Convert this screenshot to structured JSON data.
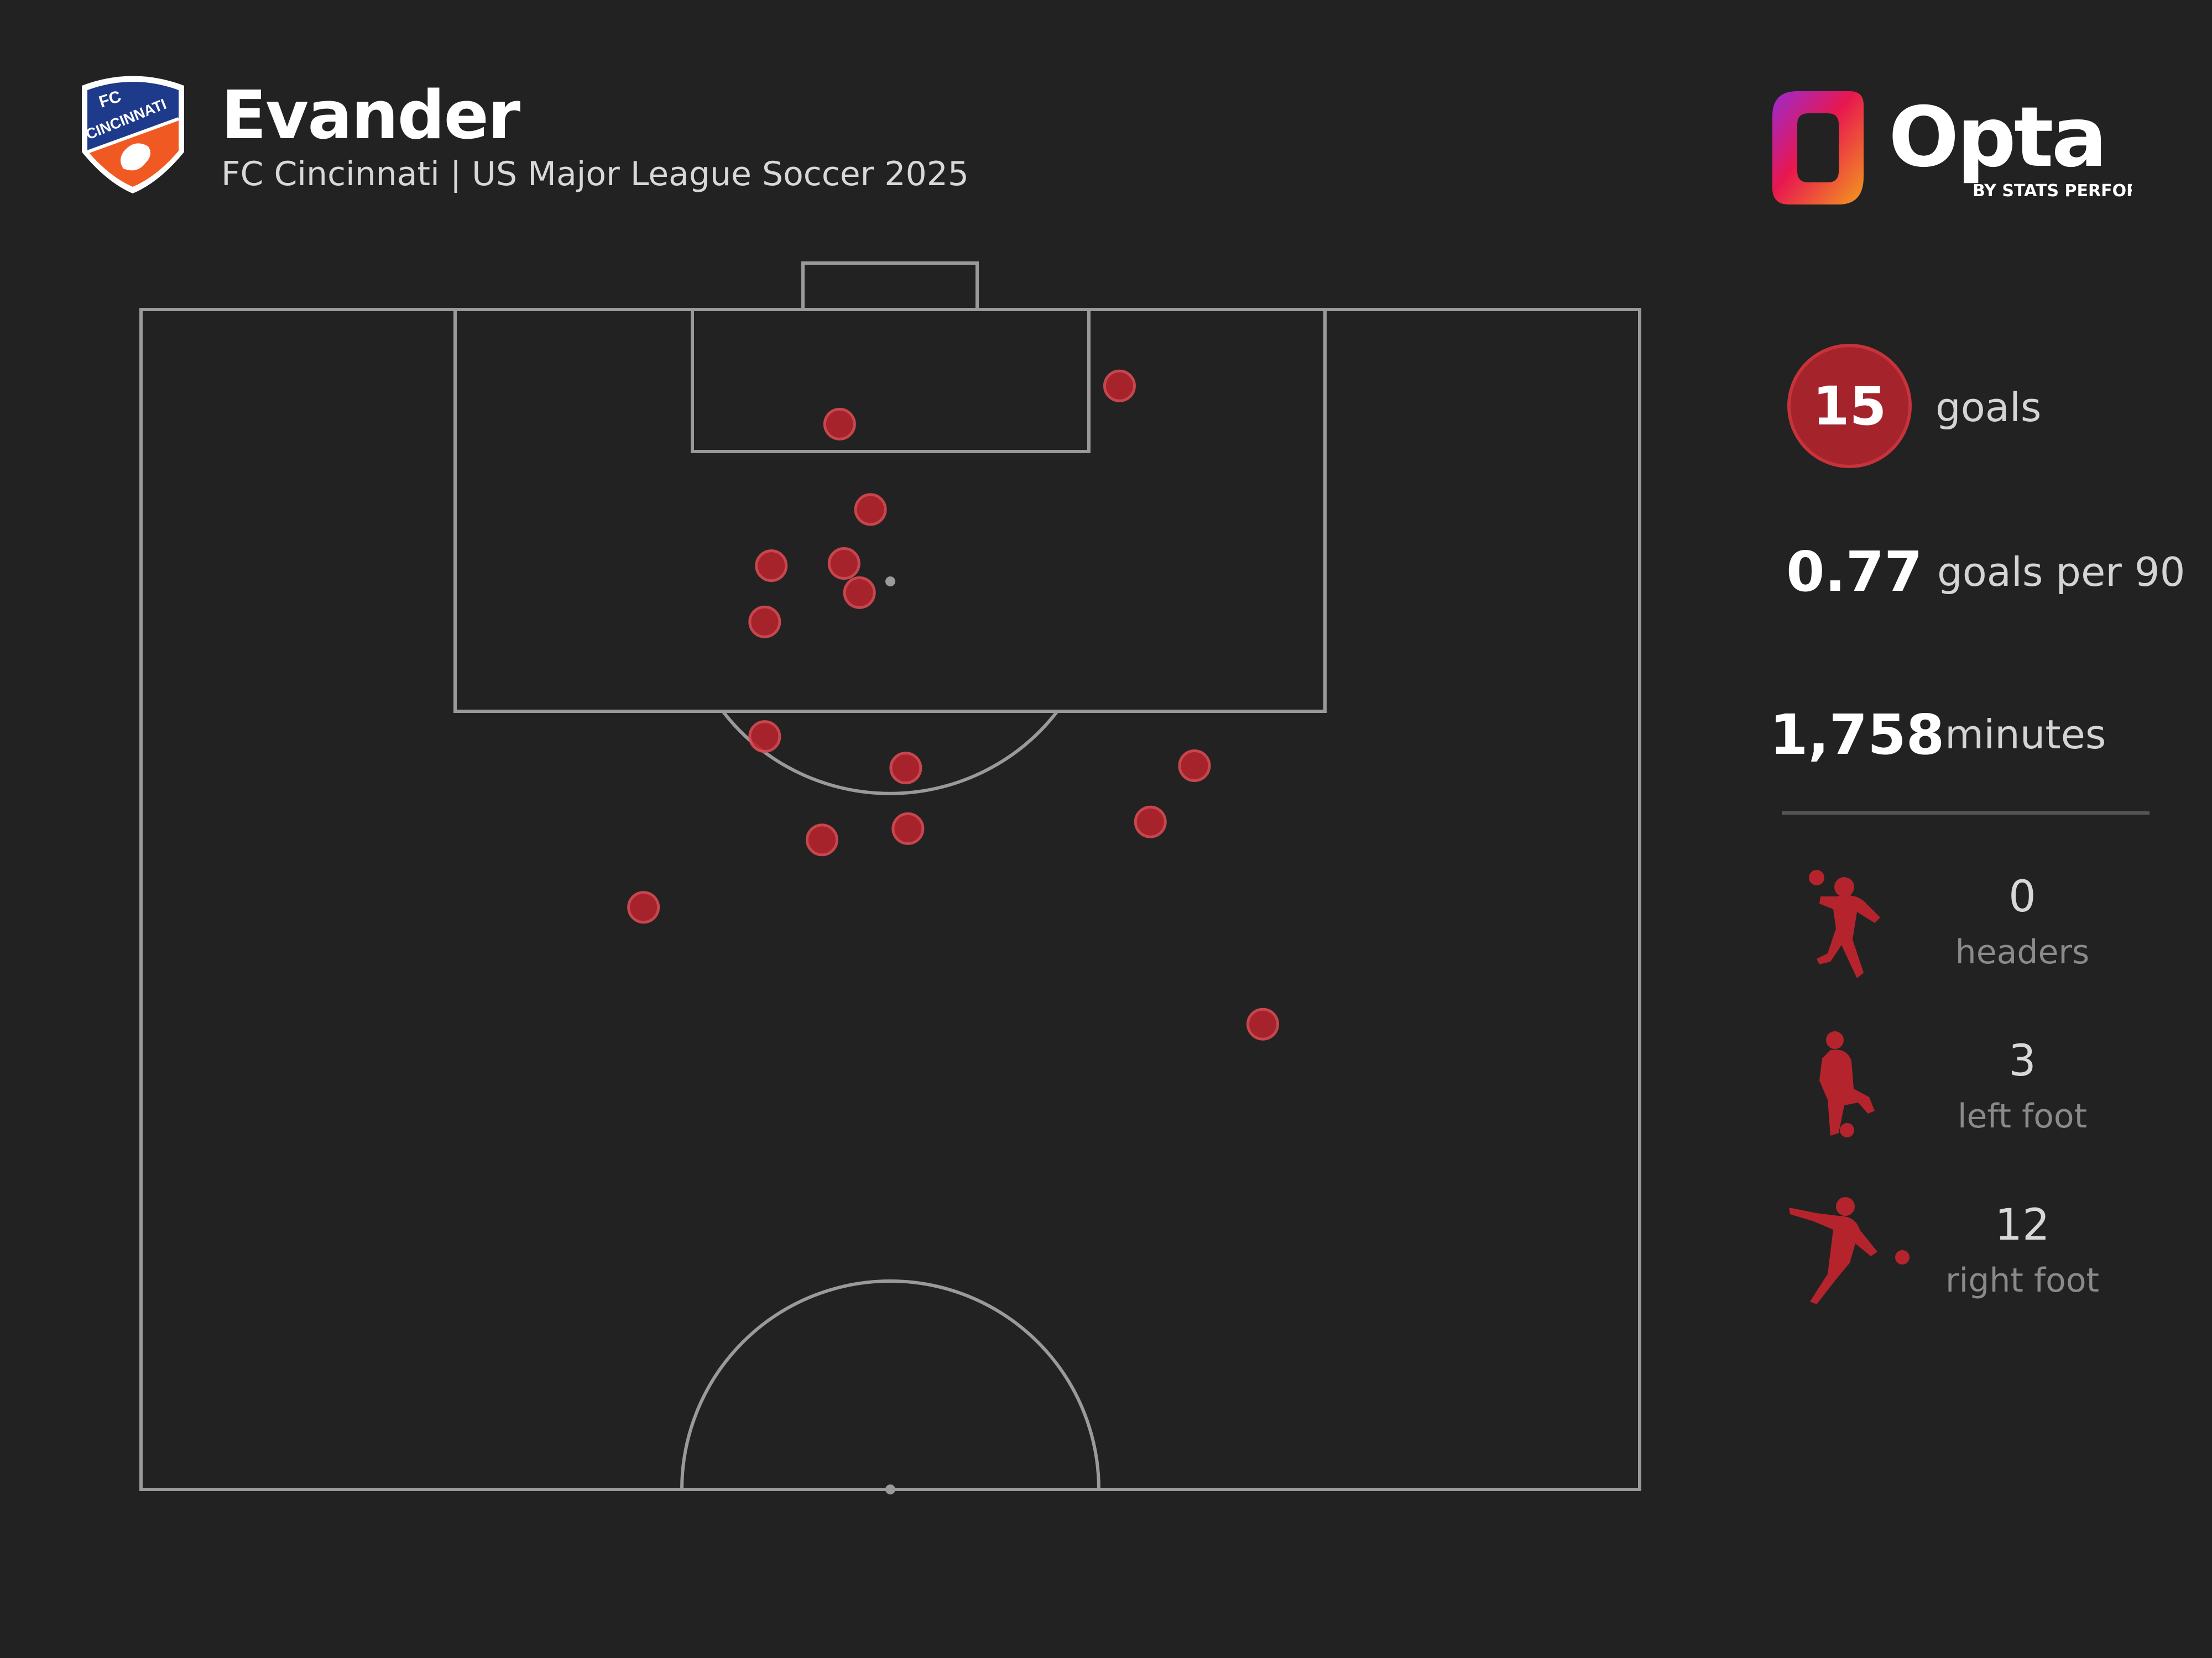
{
  "header": {
    "player_name": "Evander",
    "subtitle": "FC Cincinnati | US Major League Soccer 2025",
    "crest_text_fc": "FC",
    "crest_text_club": "CINCINNATI",
    "brand": "Opta",
    "brand_tagline": "BY STATS PERFORM"
  },
  "stats": {
    "goals_value": "15",
    "goals_label": "goals",
    "goals_per_90_value": "0.77",
    "goals_per_90_label": "goals per 90",
    "minutes_value": "1,758",
    "minutes_label": "minutes"
  },
  "goal_types": [
    {
      "icon": "header-player-icon",
      "count": "0",
      "label": "headers"
    },
    {
      "icon": "left-foot-player-icon",
      "count": "3",
      "label": "left foot"
    },
    {
      "icon": "right-foot-player-icon",
      "count": "12",
      "label": "right foot"
    }
  ],
  "colors": {
    "background": "#222222",
    "pitch_lines": "#9a9a9a",
    "goal_marker": "#b5242c",
    "goals_circle": "#a5242b",
    "brand_gradient": [
      "#e8174f",
      "#9a2bd1",
      "#f39a1e"
    ]
  },
  "chart_data": {
    "type": "scatter",
    "description_units": "pitch coordinates: x = metres from left touchline (0-68), y = metres from goal line (0-52.5)",
    "x_range": [
      0,
      68
    ],
    "y_range": [
      0,
      52.5
    ],
    "points": [
      {
        "x": 44.4,
        "y": 3.4
      },
      {
        "x": 31.7,
        "y": 5.1
      },
      {
        "x": 33.1,
        "y": 8.9
      },
      {
        "x": 28.6,
        "y": 11.4
      },
      {
        "x": 31.9,
        "y": 11.3
      },
      {
        "x": 32.6,
        "y": 12.6
      },
      {
        "x": 28.3,
        "y": 13.9
      },
      {
        "x": 28.3,
        "y": 19.0
      },
      {
        "x": 34.7,
        "y": 20.4
      },
      {
        "x": 47.8,
        "y": 20.3
      },
      {
        "x": 45.8,
        "y": 22.8
      },
      {
        "x": 34.8,
        "y": 23.1
      },
      {
        "x": 30.9,
        "y": 23.6
      },
      {
        "x": 22.8,
        "y": 26.6
      },
      {
        "x": 50.9,
        "y": 31.8
      }
    ]
  }
}
